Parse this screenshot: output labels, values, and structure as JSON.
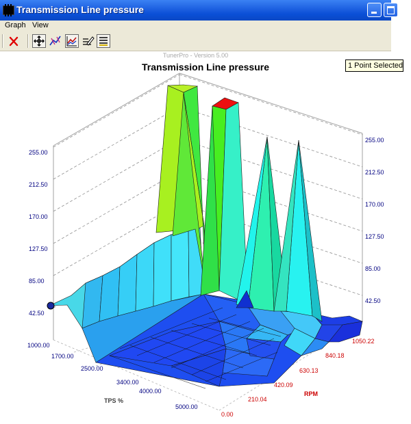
{
  "window": {
    "title": "Transmission Line pressure"
  },
  "menu": {
    "items": [
      "Graph",
      "View"
    ]
  },
  "toolbar": {
    "buttons": [
      {
        "name": "close-graph-button",
        "icon": "red-x-icon"
      },
      {
        "name": "move-button",
        "icon": "move-crosshair-icon"
      },
      {
        "name": "trace-button",
        "icon": "trace-line-icon"
      },
      {
        "name": "graph-button",
        "icon": "line-graph-icon"
      },
      {
        "name": "edit-button",
        "icon": "edit-pencil-icon"
      },
      {
        "name": "legend-button",
        "icon": "list-lines-icon"
      }
    ]
  },
  "tooltip": {
    "text": "1 Point Selected"
  },
  "version": "TunerPro - Version 5.00",
  "chart_data": {
    "type": "surface3d",
    "title": "Transmission Line pressure",
    "x_axis": {
      "label": "RPM",
      "ticks": [
        "0.00",
        "210.04",
        "420.09",
        "630.13",
        "840.18",
        "1050.22"
      ],
      "color": "#cc0000"
    },
    "y_axis": {
      "label": "TPS %",
      "ticks": [
        "1000.00",
        "1700.00",
        "2500.00",
        "3400.00",
        "4000.00",
        "5000.00"
      ],
      "color": "#404040"
    },
    "z_axis": {
      "ticks": [
        "42.50",
        "85.00",
        "127.50",
        "170.00",
        "212.50",
        "255.00"
      ],
      "ticks_right": [
        "42.50",
        "85.00",
        "127.50",
        "170.00",
        "212.50",
        "255.00"
      ],
      "range": [
        0,
        255
      ],
      "color": "#000080"
    },
    "selected_marker": {
      "color": "#000080"
    }
  }
}
